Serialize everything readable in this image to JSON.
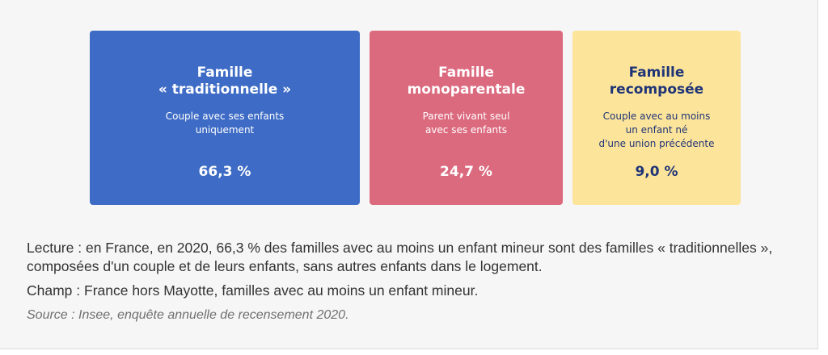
{
  "chart_data": {
    "type": "table",
    "cards": [
      {
        "title": "Famille\n« traditionnelle »",
        "description": "Couple avec ses enfants\nuniquement",
        "value_label": "66,3 %",
        "value": 66.3,
        "color": "#3d6bc5"
      },
      {
        "title": "Famille\nmonoparentale",
        "description": "Parent vivant seul\navec ses enfants",
        "value_label": "24,7 %",
        "value": 24.7,
        "color": "#dc6a7f"
      },
      {
        "title": "Famille\nrecomposée",
        "description": "Couple avec au moins\nun enfant né\nd'une union précédente",
        "value_label": "9,0 %",
        "value": 9.0,
        "color": "#fde49b"
      }
    ]
  },
  "notes": {
    "lecture": "Lecture : en France, en 2020, 66,3 % des familles avec au moins un enfant mineur sont des familles « traditionnelles », composées d'un couple et de leurs enfants, sans autres enfants dans le logement.",
    "champ": "Champ : France hors Mayotte, familles avec au moins un enfant mineur.",
    "source": "Source : Insee, enquête annuelle de recensement 2020."
  }
}
